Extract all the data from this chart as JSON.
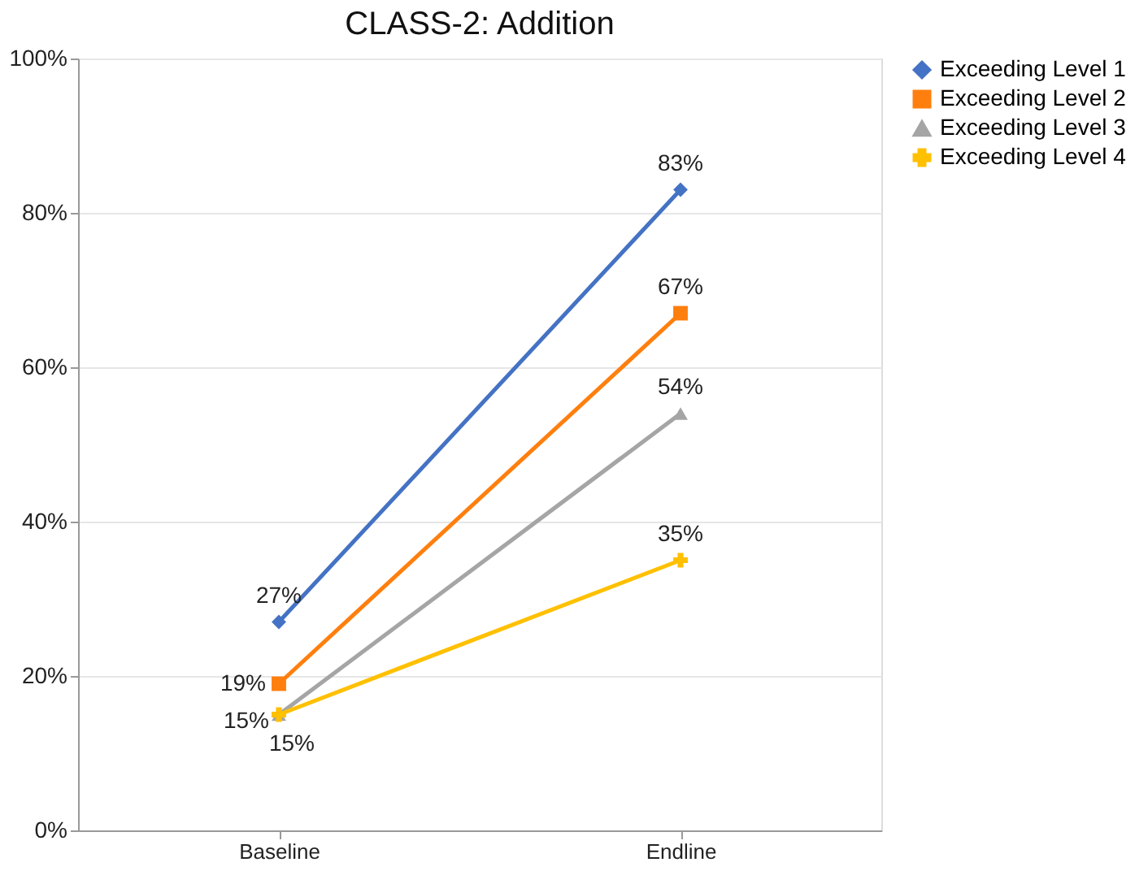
{
  "chart_data": {
    "type": "line",
    "title": "CLASS-2: Addition",
    "categories": [
      "Baseline",
      "Endline"
    ],
    "series": [
      {
        "name": "Exceeding Level 1",
        "color": "#4472c4",
        "marker": "diamond",
        "values": [
          27,
          83
        ],
        "value_labels": [
          "27%",
          "83%"
        ]
      },
      {
        "name": "Exceeding Level 2",
        "color": "#ff7f0e",
        "marker": "square",
        "values": [
          19,
          67
        ],
        "value_labels": [
          "19%",
          "67%"
        ]
      },
      {
        "name": "Exceeding Level 3",
        "color": "#a5a5a5",
        "marker": "triangle",
        "values": [
          15,
          54
        ],
        "value_labels": [
          "15%",
          "54%"
        ]
      },
      {
        "name": "Exceeding Level 4",
        "color": "#ffc000",
        "marker": "cross",
        "values": [
          15,
          35
        ],
        "value_labels": [
          "15%",
          "35%"
        ]
      }
    ],
    "ylim": [
      0,
      100
    ],
    "yticks": [
      {
        "value": 0,
        "label": "0%"
      },
      {
        "value": 20,
        "label": "20%"
      },
      {
        "value": 40,
        "label": "40%"
      },
      {
        "value": 60,
        "label": "60%"
      },
      {
        "value": 80,
        "label": "80%"
      },
      {
        "value": 100,
        "label": "100%"
      }
    ],
    "grid": "y",
    "legend": "right",
    "line_style": "solid"
  }
}
